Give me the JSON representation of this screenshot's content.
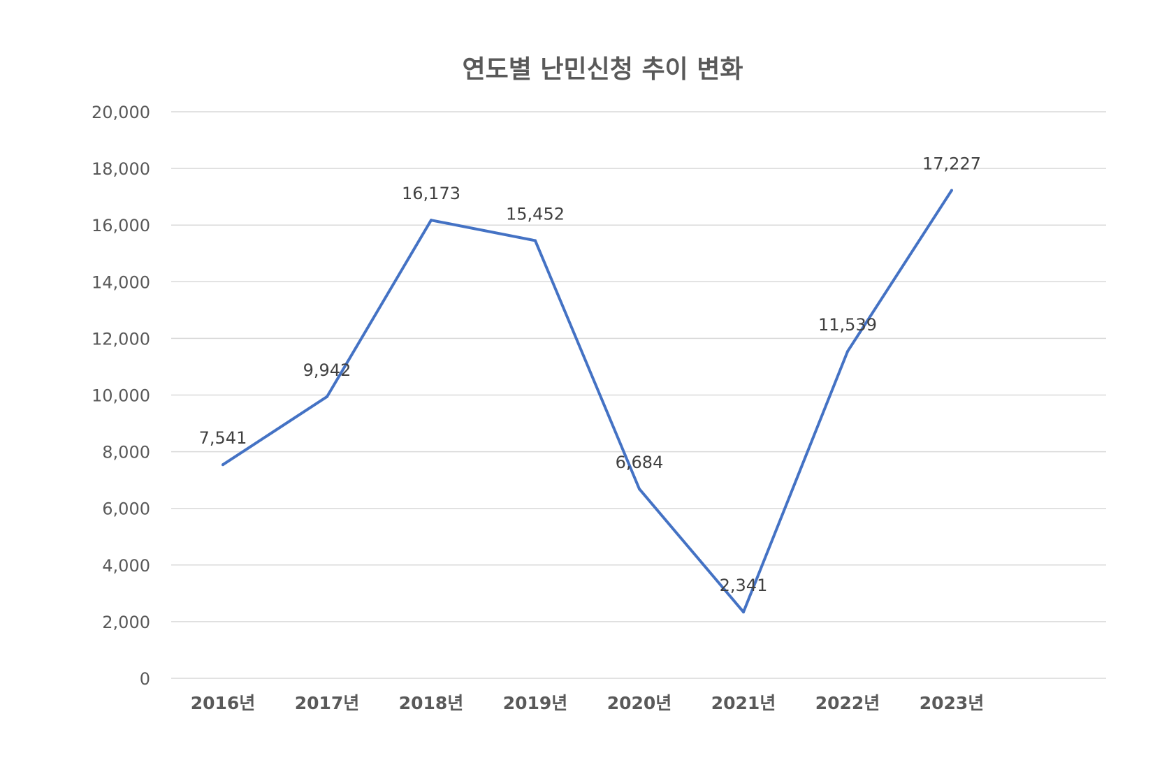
{
  "chart_data": {
    "type": "line",
    "title": "연도별 난민신청 추이 변화",
    "xlabel": "",
    "ylabel": "",
    "categories": [
      "2016년",
      "2017년",
      "2018년",
      "2019년",
      "2020년",
      "2021년",
      "2022년",
      "2023년"
    ],
    "series": [
      {
        "name": "난민신청",
        "values": [
          7541,
          9942,
          16173,
          15452,
          6684,
          2341,
          11539,
          17227
        ],
        "labels": [
          "7,541",
          "9,942",
          "16,173",
          "15,452",
          "6,684",
          "2,341",
          "11,539",
          "17,227"
        ]
      }
    ],
    "ylim": [
      0,
      20000
    ],
    "yticks": [
      0,
      2000,
      4000,
      6000,
      8000,
      10000,
      12000,
      14000,
      16000,
      18000,
      20000
    ],
    "ytick_labels": [
      "0",
      "2,000",
      "4,000",
      "6,000",
      "8,000",
      "10,000",
      "12,000",
      "14,000",
      "16,000",
      "18,000",
      "20,000"
    ],
    "grid": true,
    "legend": "none",
    "colors": {
      "line": "#4472C4",
      "grid": "#D9D9D9",
      "text": "#595959"
    }
  }
}
